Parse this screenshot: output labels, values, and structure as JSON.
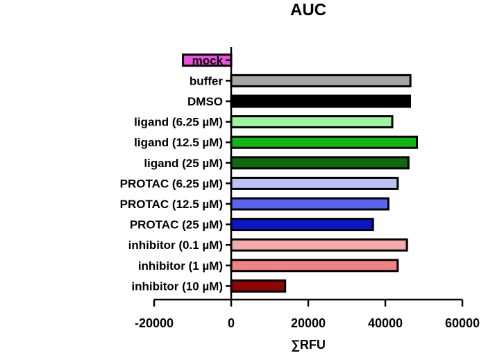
{
  "chart_data": {
    "type": "bar",
    "orientation": "horizontal",
    "title": "AUC",
    "xlabel": "∑RFU",
    "ylabel": "",
    "xlim": [
      -20000,
      60000
    ],
    "xticks": [
      -20000,
      0,
      20000,
      40000,
      60000
    ],
    "xtick_labels": [
      "-20000",
      "0",
      "20000",
      "40000",
      "60000"
    ],
    "grid": false,
    "categories": [
      "mock",
      "buffer",
      "DMSO",
      "ligand (6.25 µM)",
      "ligand (12.5 µM)",
      "ligand (25 µM)",
      "PROTAC (6.25 µM)",
      "PROTAC (12.5 µM)",
      "PROTAC (25 µM)",
      "inhibitor (0.1 µM)",
      "inhibitor (1 µM)",
      "inhibitor (10 µM)"
    ],
    "values": [
      -12500,
      46500,
      46400,
      41800,
      48200,
      46000,
      43200,
      40800,
      36800,
      45600,
      43200,
      14000
    ],
    "colors": [
      "#ef4fe0",
      "#a6a6a6",
      "#000000",
      "#9cf59c",
      "#12b812",
      "#0d6b0d",
      "#bcc0f5",
      "#5a64f0",
      "#0b16c8",
      "#f5aaaa",
      "#f08282",
      "#900404"
    ]
  }
}
